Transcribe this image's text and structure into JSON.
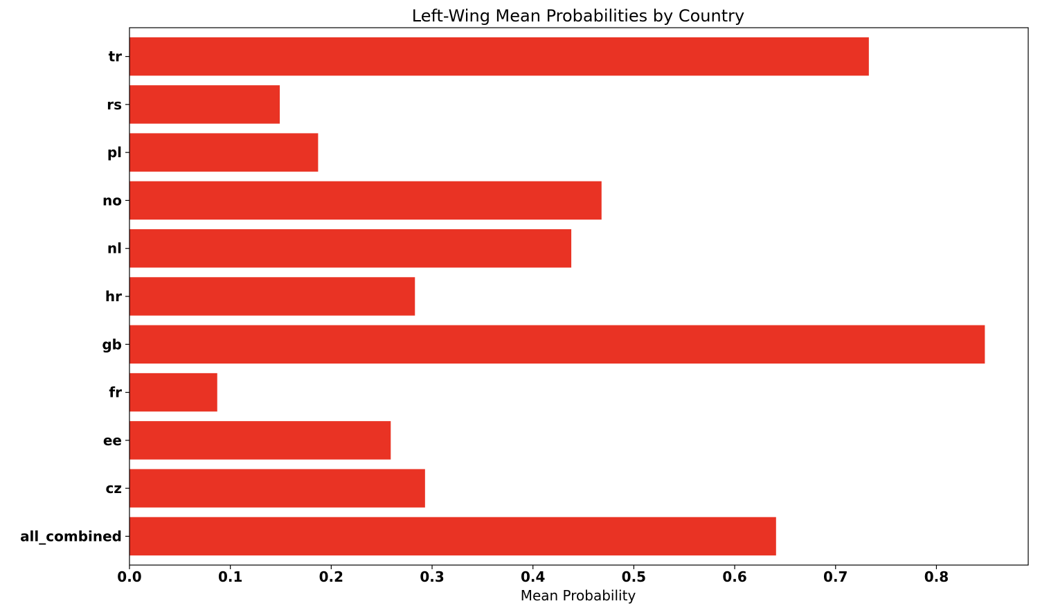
{
  "colors": {
    "bar": "#e93324",
    "axis": "#000000",
    "background": "#ffffff"
  },
  "chart_data": {
    "type": "bar",
    "orientation": "horizontal",
    "title": "Left-Wing Mean Probabilities by Country",
    "xlabel": "Mean Probability",
    "ylabel": "",
    "categories": [
      "all_combined",
      "cz",
      "ee",
      "fr",
      "gb",
      "hr",
      "nl",
      "no",
      "pl",
      "rs",
      "tr"
    ],
    "values": [
      0.641,
      0.293,
      0.259,
      0.087,
      0.848,
      0.283,
      0.438,
      0.468,
      0.187,
      0.149,
      0.733
    ],
    "xlim": [
      0,
      0.891
    ],
    "xticks": [
      0.0,
      0.1,
      0.2,
      0.3,
      0.4,
      0.5,
      0.6,
      0.7,
      0.8
    ],
    "xtick_labels": [
      "0.0",
      "0.1",
      "0.2",
      "0.3",
      "0.4",
      "0.5",
      "0.6",
      "0.7",
      "0.8"
    ],
    "grid": false,
    "legend": "none"
  }
}
